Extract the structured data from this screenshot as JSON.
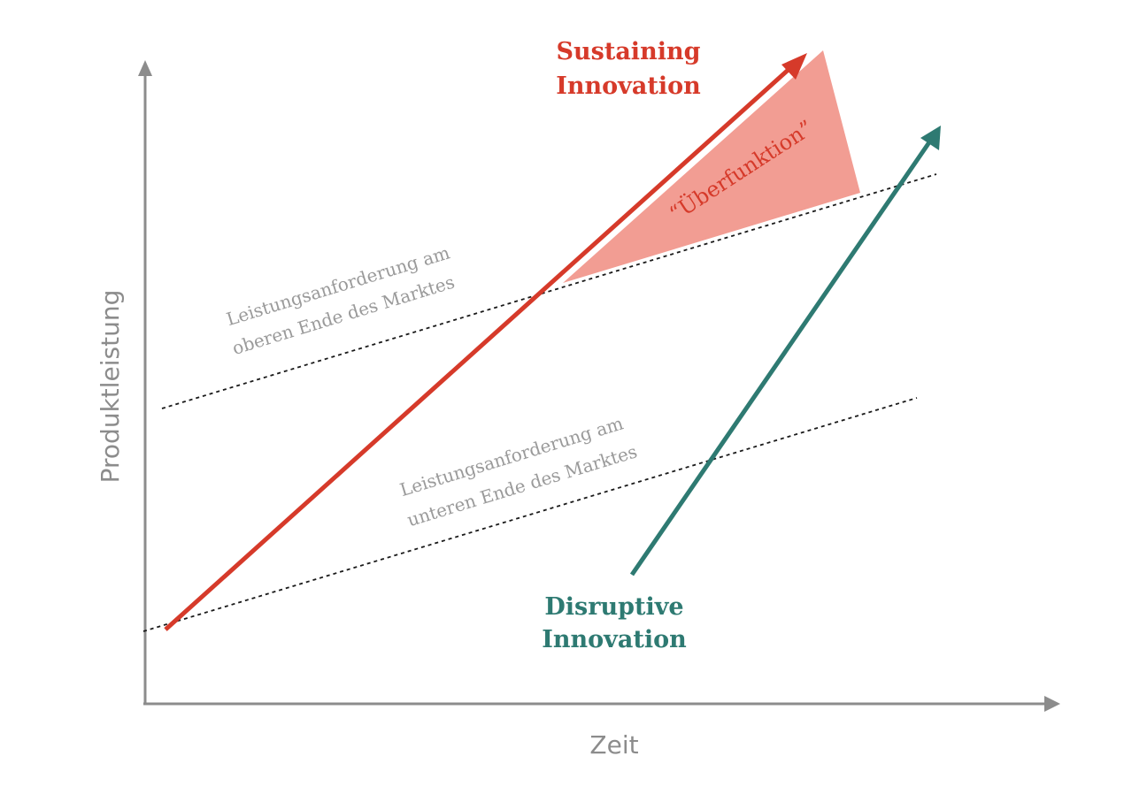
{
  "axes": {
    "x_label": "Zeit",
    "y_label": "Produktleistung"
  },
  "requirements": {
    "upper": {
      "line1": "Leistungsanforderung am",
      "line2": "oberen Ende des Marktes"
    },
    "lower": {
      "line1": "Leistungsanforderung am",
      "line2": "unteren Ende des Marktes"
    }
  },
  "sustaining": {
    "line1": "Sustaining",
    "line2": "Innovation"
  },
  "disruptive": {
    "line1": "Disruptive",
    "line2": "Innovation"
  },
  "overshoot": {
    "label": "“Überfunktion”"
  },
  "colors": {
    "sustaining": "#d63a2a",
    "disruptive": "#2e7a72",
    "overshoot_fill": "#f29d93",
    "axis": "#8c8c8c",
    "requirement_line": "#1a1a1a"
  },
  "icons": {
    "y_axis_arrow": "triangle-up",
    "x_axis_arrow": "triangle-right",
    "sustaining_arrow": "arrowhead",
    "disruptive_arrow": "arrowhead"
  }
}
